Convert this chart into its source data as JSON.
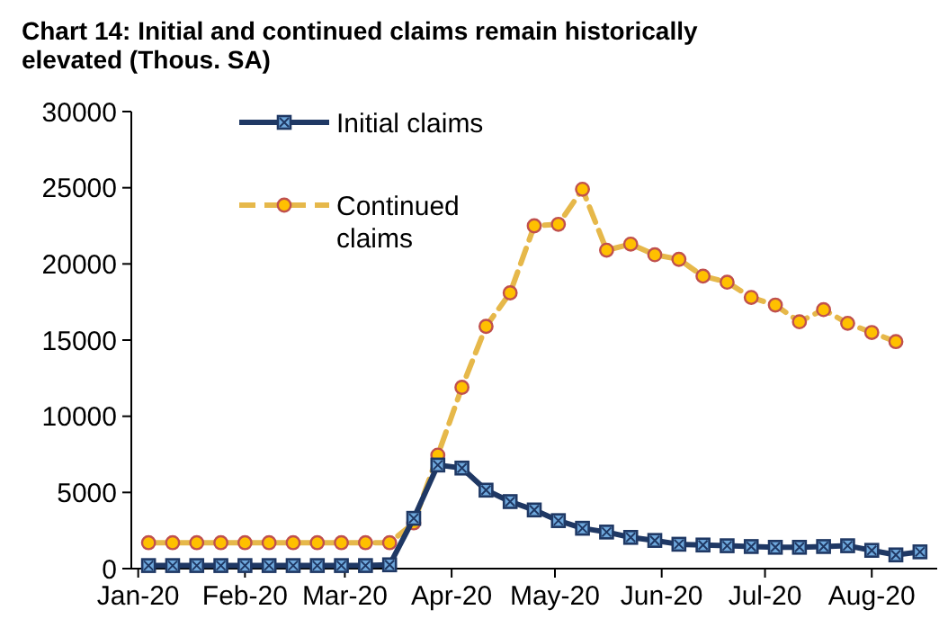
{
  "chart_data": {
    "type": "line",
    "title": "Chart 14: Initial and continued claims remain historically elevated (Thous. SA)",
    "x": [
      "2020-01-04",
      "2020-01-11",
      "2020-01-18",
      "2020-01-25",
      "2020-02-01",
      "2020-02-08",
      "2020-02-15",
      "2020-02-22",
      "2020-02-29",
      "2020-03-07",
      "2020-03-14",
      "2020-03-21",
      "2020-03-28",
      "2020-04-04",
      "2020-04-11",
      "2020-04-18",
      "2020-04-25",
      "2020-05-02",
      "2020-05-09",
      "2020-05-16",
      "2020-05-23",
      "2020-05-30",
      "2020-06-06",
      "2020-06-13",
      "2020-06-20",
      "2020-06-27",
      "2020-07-04",
      "2020-07-11",
      "2020-07-18",
      "2020-07-25",
      "2020-08-01",
      "2020-08-08",
      "2020-08-15"
    ],
    "series": [
      {
        "name": "Initial claims",
        "color": "#1f3864",
        "marker": "square",
        "line_style": "solid",
        "values": [
          200,
          200,
          200,
          200,
          200,
          200,
          200,
          200,
          200,
          200,
          250,
          3300,
          6800,
          6600,
          5150,
          4400,
          3850,
          3150,
          2650,
          2400,
          2050,
          1850,
          1600,
          1550,
          1500,
          1450,
          1400,
          1400,
          1450,
          1500,
          1200,
          900,
          1100
        ]
      },
      {
        "name": "Continued claims",
        "color": "#e6b84a",
        "marker": "circle",
        "line_style": "dashed",
        "values": [
          1700,
          1700,
          1700,
          1700,
          1700,
          1700,
          1700,
          1700,
          1700,
          1700,
          1700,
          3000,
          7450,
          11900,
          15900,
          18100,
          22500,
          22600,
          24900,
          20900,
          21300,
          20600,
          20300,
          19200,
          18800,
          17800,
          17300,
          16200,
          17000,
          16100,
          15500,
          14900,
          null
        ]
      }
    ],
    "xlim": [
      "2019-12-30",
      "2020-08-20"
    ],
    "xticks": [
      {
        "value": "2020-01-01",
        "label": "Jan-20"
      },
      {
        "value": "2020-02-01",
        "label": "Feb-20"
      },
      {
        "value": "2020-03-01",
        "label": "Mar-20"
      },
      {
        "value": "2020-04-01",
        "label": "Apr-20"
      },
      {
        "value": "2020-05-01",
        "label": "May-20"
      },
      {
        "value": "2020-06-01",
        "label": "Jun-20"
      },
      {
        "value": "2020-07-01",
        "label": "Jul-20"
      },
      {
        "value": "2020-08-01",
        "label": "Aug-20"
      }
    ],
    "ylim": [
      0,
      30000
    ],
    "yticks": [
      0,
      5000,
      10000,
      15000,
      20000,
      25000,
      30000
    ],
    "grid": false,
    "legend": "top"
  }
}
